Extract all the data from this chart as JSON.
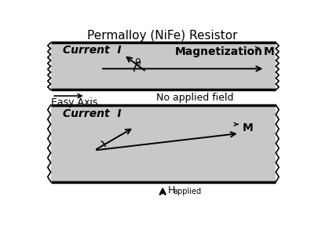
{
  "title": "Permalloy (NiFe) Resistor",
  "white_bg": "#ffffff",
  "gray": "#c8c8c8",
  "box1_label_current": "Current  I",
  "box1_label_mag": "Magnetization",
  "box1_label_M": "M",
  "box1_theta": "θ",
  "no_field_text": "No applied field",
  "easy_axis_label": "Easy Axis",
  "box2_label_current": "Current  I",
  "box2_label_M": "M",
  "title_fontsize": 11,
  "label_fontsize": 10,
  "small_fontsize": 9
}
